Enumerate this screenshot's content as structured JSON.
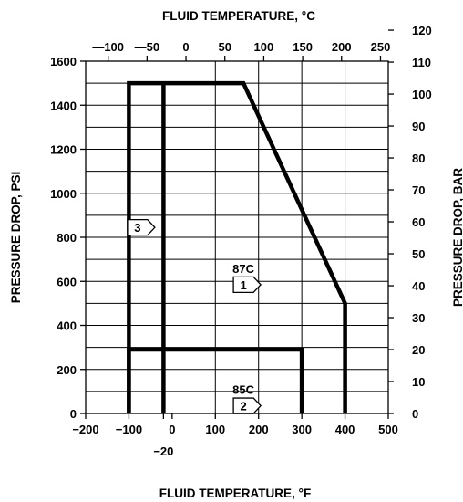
{
  "chart_data": {
    "type": "line",
    "title_top": "FLUID TEMPERATURE,  °C",
    "xlabel": "FLUID TEMPERATURE, °F",
    "ylabel_left": "PRESSURE DROP, PSI",
    "ylabel_right": "PRESSURE DROP, BAR",
    "x_f_ticks": [
      "−200",
      "−100",
      "0",
      "100",
      "200",
      "300",
      "400",
      "500"
    ],
    "x_f_extra_tick": "−20",
    "x_c_ticks": [
      "—100",
      "—50",
      "0",
      "50",
      "100",
      "150",
      "200",
      "250"
    ],
    "y_psi_ticks": [
      "0",
      "200",
      "400",
      "600",
      "800",
      "1000",
      "1200",
      "1400",
      "1600"
    ],
    "y_bar_ticks": [
      "0",
      "10",
      "20",
      "30",
      "40",
      "50",
      "60",
      "70",
      "80",
      "90",
      "100",
      "110",
      "120"
    ],
    "xlim_f": [
      -200,
      500
    ],
    "ylim_psi": [
      0,
      1600
    ],
    "xlim_c": [
      -128.9,
      260
    ],
    "ylim_bar": [
      0,
      110.3
    ],
    "x_c_tick_values": [
      -100,
      -50,
      0,
      50,
      100,
      150,
      200,
      250
    ],
    "y_bar_tick_values": [
      0,
      10,
      20,
      30,
      40,
      50,
      60,
      70,
      80,
      90,
      100,
      110,
      120
    ],
    "x_f_tick_values": [
      -200,
      -100,
      0,
      100,
      200,
      300,
      400,
      500
    ],
    "y_psi_tick_values": [
      0,
      200,
      400,
      600,
      800,
      1000,
      1200,
      1400,
      1600
    ],
    "grid": true,
    "series": [
      {
        "name": "87C",
        "points": [
          [
            -100,
            0
          ],
          [
            -100,
            1500
          ],
          [
            165,
            1500
          ],
          [
            400,
            500
          ],
          [
            400,
            0
          ]
        ]
      },
      {
        "name": "85C",
        "points": [
          [
            -100,
            0
          ],
          [
            -100,
            290
          ],
          [
            300,
            290
          ],
          [
            300,
            0
          ]
        ]
      },
      {
        "name": "",
        "points": [
          [
            -20,
            0
          ],
          [
            -20,
            1500
          ]
        ]
      }
    ],
    "annotations": [
      {
        "label": "87C",
        "x": 165,
        "y": 660
      },
      {
        "label": "85C",
        "x": 165,
        "y": 110
      },
      {
        "label": "3",
        "x": -80,
        "y": 845,
        "flag": true
      },
      {
        "label": "1",
        "x": 165,
        "y": 585,
        "flag": true
      },
      {
        "label": "2",
        "x": 165,
        "y": 35,
        "flag": true
      }
    ]
  }
}
